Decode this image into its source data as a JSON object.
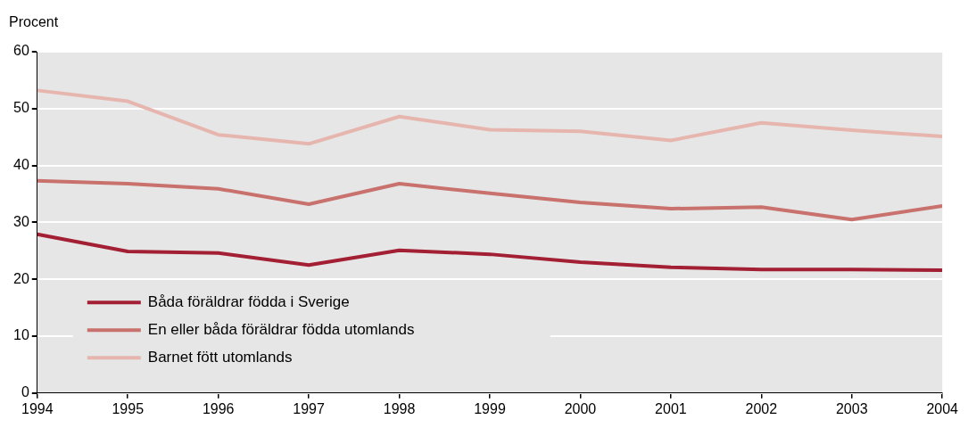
{
  "chart_data": {
    "type": "line",
    "ylabel": "Procent",
    "x": [
      1994,
      1995,
      1996,
      1997,
      1998,
      1999,
      2000,
      2001,
      2002,
      2003,
      2004
    ],
    "xlim": [
      1994,
      2004
    ],
    "xticks": [
      1994,
      1995,
      1996,
      1997,
      1998,
      1999,
      2000,
      2001,
      2002,
      2003,
      2004
    ],
    "ylim": [
      0,
      60
    ],
    "yticks": [
      0,
      10,
      20,
      30,
      40,
      50,
      60
    ],
    "grid": "y",
    "legend": "bottom left",
    "marker": "none",
    "line_style": "solid",
    "series": [
      {
        "name": "Båda föräldrar födda i Sverige",
        "color": "#a31f33",
        "values": [
          27.9,
          24.9,
          24.6,
          22.5,
          25.1,
          24.4,
          23.0,
          22.1,
          21.7,
          21.7,
          21.6
        ]
      },
      {
        "name": "En eller båda föräldrar födda utomlands",
        "color": "#c8716d",
        "values": [
          37.3,
          36.8,
          35.9,
          33.2,
          36.8,
          35.1,
          33.5,
          32.4,
          32.7,
          30.5,
          32.9
        ]
      },
      {
        "name": "Barnet fött utomlands",
        "color": "#e6b6ae",
        "values": [
          53.2,
          51.3,
          45.4,
          43.8,
          48.6,
          46.3,
          46.0,
          44.4,
          47.5,
          46.2,
          45.1
        ]
      }
    ]
  }
}
